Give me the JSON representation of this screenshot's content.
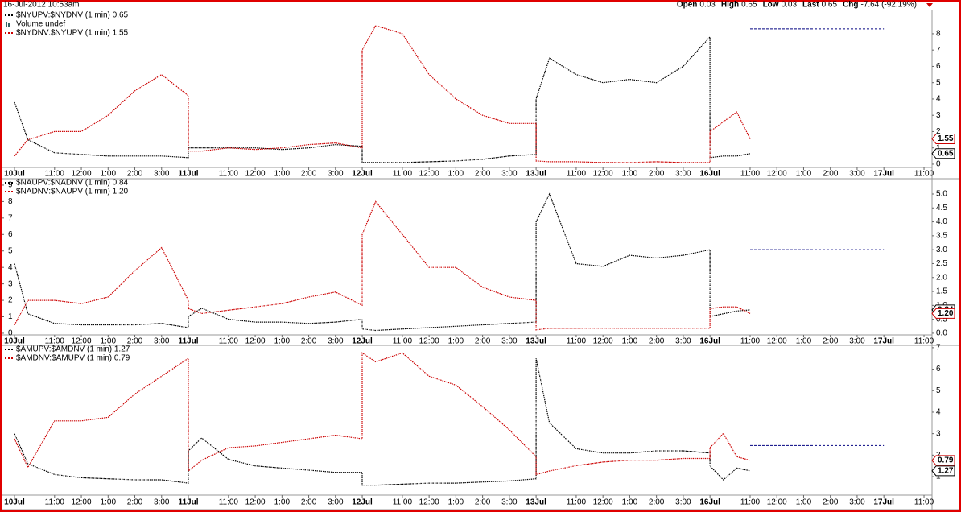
{
  "header": {
    "date": "16-Jul-2012 10:53am",
    "stats": [
      {
        "label": "Open",
        "value": "0.03"
      },
      {
        "label": "High",
        "value": "0.65"
      },
      {
        "label": "Low",
        "value": "0.03"
      },
      {
        "label": "Last",
        "value": "0.65"
      },
      {
        "label": "Chg",
        "value": "-7.64 (-92.19%)"
      }
    ]
  },
  "chart_data": [
    {
      "type": "line",
      "volume_label": "Volume undef",
      "x": [
        0,
        0.5,
        1.5,
        2.5,
        3.5,
        4.5,
        5.5,
        6.5,
        6.5,
        7,
        8,
        9,
        10,
        11,
        12,
        13,
        13,
        13.5,
        14.5,
        15.5,
        16.5,
        17.5,
        18.5,
        19.5,
        19.5,
        20,
        21,
        22,
        23,
        24,
        25,
        26,
        26,
        26.5,
        27,
        27.5
      ],
      "xlim": [
        -0.48,
        34.3
      ],
      "xticks": [
        {
          "value": 0,
          "label": "10Jul"
        },
        {
          "value": 1.5,
          "label": "11:00"
        },
        {
          "value": 2.5,
          "label": "12:00"
        },
        {
          "value": 3.5,
          "label": "1:00"
        },
        {
          "value": 4.5,
          "label": "2:00"
        },
        {
          "value": 5.5,
          "label": "3:00"
        },
        {
          "value": 6.5,
          "label": "11Jul"
        },
        {
          "value": 8,
          "label": "11:00"
        },
        {
          "value": 9,
          "label": "12:00"
        },
        {
          "value": 10,
          "label": "1:00"
        },
        {
          "value": 11,
          "label": "2:00"
        },
        {
          "value": 12,
          "label": "3:00"
        },
        {
          "value": 13,
          "label": "12Jul"
        },
        {
          "value": 14.5,
          "label": "11:00"
        },
        {
          "value": 15.5,
          "label": "12:00"
        },
        {
          "value": 16.5,
          "label": "1:00"
        },
        {
          "value": 17.5,
          "label": "2:00"
        },
        {
          "value": 18.5,
          "label": "3:00"
        },
        {
          "value": 19.5,
          "label": "13Jul"
        },
        {
          "value": 21,
          "label": "11:00"
        },
        {
          "value": 22,
          "label": "12:00"
        },
        {
          "value": 23,
          "label": "1:00"
        },
        {
          "value": 24,
          "label": "2:00"
        },
        {
          "value": 25,
          "label": "3:00"
        },
        {
          "value": 26,
          "label": "16Jul"
        },
        {
          "value": 27.5,
          "label": "11:00"
        },
        {
          "value": 28.5,
          "label": "12:00"
        },
        {
          "value": 29.5,
          "label": "1:00"
        },
        {
          "value": 30.5,
          "label": "2:00"
        },
        {
          "value": 31.5,
          "label": "3:00"
        },
        {
          "value": 32.5,
          "label": "17Jul"
        },
        {
          "value": 34,
          "label": "11:00"
        }
      ],
      "ylim": [
        -0.2,
        9.33
      ],
      "yticks": [
        0,
        1,
        2,
        3,
        4,
        5,
        6,
        7,
        8
      ],
      "ytick_side": "right",
      "reference_line": {
        "value": 8.3,
        "color": "#000080"
      },
      "series": [
        {
          "name": "$NYUPV:$NYDNV (1 min) 0.65",
          "color": "#000000",
          "last_value": 0.65,
          "values": [
            3.8,
            1.5,
            0.7,
            0.6,
            0.5,
            0.5,
            0.5,
            0.4,
            1.0,
            1.0,
            1.0,
            1.0,
            0.9,
            1.0,
            1.2,
            1.1,
            0.1,
            0.1,
            0.1,
            0.15,
            0.2,
            0.3,
            0.5,
            0.6,
            4.0,
            6.5,
            5.5,
            5.0,
            5.2,
            5.0,
            6.0,
            7.8,
            0.4,
            0.5,
            0.5,
            0.65
          ]
        },
        {
          "name": "$NYDNV:$NYUPV (1 min) 1.55",
          "color": "#cc0000",
          "last_value": 1.55,
          "values": [
            0.5,
            1.5,
            2.0,
            2.0,
            3.0,
            4.5,
            5.5,
            4.2,
            0.8,
            0.8,
            1.0,
            0.9,
            1.0,
            1.2,
            1.3,
            1.0,
            7.0,
            8.5,
            8.0,
            5.5,
            4.0,
            3.0,
            2.5,
            2.5,
            0.2,
            0.15,
            0.15,
            0.1,
            0.1,
            0.15,
            0.1,
            0.1,
            2.0,
            2.6,
            3.2,
            1.55
          ]
        }
      ]
    },
    {
      "type": "line",
      "x": [
        0,
        0.5,
        1.5,
        2.5,
        3.5,
        4.5,
        5.5,
        6.5,
        6.5,
        7,
        8,
        9,
        10,
        11,
        12,
        13,
        13,
        13.5,
        14.5,
        15.5,
        16.5,
        17.5,
        18.5,
        19.5,
        19.5,
        20,
        21,
        22,
        23,
        24,
        25,
        26,
        26,
        26.5,
        27,
        27.5
      ],
      "xlim": [
        -0.48,
        34.3
      ],
      "xticks": [
        {
          "value": 0,
          "label": "10Jul"
        },
        {
          "value": 1.5,
          "label": "11:00"
        },
        {
          "value": 2.5,
          "label": "12:00"
        },
        {
          "value": 3.5,
          "label": "1:00"
        },
        {
          "value": 4.5,
          "label": "2:00"
        },
        {
          "value": 5.5,
          "label": "3:00"
        },
        {
          "value": 6.5,
          "label": "11Jul"
        },
        {
          "value": 8,
          "label": "11:00"
        },
        {
          "value": 9,
          "label": "12:00"
        },
        {
          "value": 10,
          "label": "1:00"
        },
        {
          "value": 11,
          "label": "2:00"
        },
        {
          "value": 12,
          "label": "3:00"
        },
        {
          "value": 13,
          "label": "12Jul"
        },
        {
          "value": 14.5,
          "label": "11:00"
        },
        {
          "value": 15.5,
          "label": "12:00"
        },
        {
          "value": 16.5,
          "label": "1:00"
        },
        {
          "value": 17.5,
          "label": "2:00"
        },
        {
          "value": 18.5,
          "label": "3:00"
        },
        {
          "value": 19.5,
          "label": "13Jul"
        },
        {
          "value": 21,
          "label": "11:00"
        },
        {
          "value": 22,
          "label": "12:00"
        },
        {
          "value": 23,
          "label": "1:00"
        },
        {
          "value": 24,
          "label": "2:00"
        },
        {
          "value": 25,
          "label": "3:00"
        },
        {
          "value": 26,
          "label": "16Jul"
        },
        {
          "value": 27.5,
          "label": "11:00"
        },
        {
          "value": 28.5,
          "label": "12:00"
        },
        {
          "value": 29.5,
          "label": "1:00"
        },
        {
          "value": 30.5,
          "label": "2:00"
        },
        {
          "value": 31.5,
          "label": "3:00"
        },
        {
          "value": 32.5,
          "label": "17Jul"
        },
        {
          "value": 34,
          "label": "11:00"
        }
      ],
      "ylim": [
        -0.1,
        9.34
      ],
      "yticks": [
        0,
        1,
        2,
        3,
        4,
        5,
        6,
        7,
        8,
        9
      ],
      "ytick_side": "left",
      "y2lim": [
        -0.06,
        5.52
      ],
      "y2ticks": [
        {
          "value": 0,
          "label": "0.0"
        },
        {
          "value": 0.5,
          "label": "0.5"
        },
        {
          "value": 1,
          "label": "1.0"
        },
        {
          "value": 1.5,
          "label": "1.5"
        },
        {
          "value": 2,
          "label": "2.0"
        },
        {
          "value": 2.5,
          "label": "2.5"
        },
        {
          "value": 3,
          "label": "3.0"
        },
        {
          "value": 3.5,
          "label": "3.5"
        },
        {
          "value": 4,
          "label": "4.0"
        },
        {
          "value": 4.5,
          "label": "4.5"
        },
        {
          "value": 5,
          "label": "5.0"
        }
      ],
      "reference_line": {
        "value": 3.0,
        "color": "#000080",
        "axis": "y2"
      },
      "series": [
        {
          "name": "$NAUPV:$NADNV (1 min) 0.84",
          "color": "#000000",
          "axis": "y2",
          "last_value": 0.84,
          "values": [
            2.5,
            0.7,
            0.35,
            0.3,
            0.3,
            0.3,
            0.35,
            0.2,
            0.6,
            0.9,
            0.5,
            0.4,
            0.4,
            0.35,
            0.4,
            0.5,
            0.15,
            0.1,
            0.15,
            0.2,
            0.25,
            0.3,
            0.35,
            0.4,
            4.0,
            5.0,
            2.5,
            2.4,
            2.8,
            2.7,
            2.8,
            3.0,
            0.6,
            0.7,
            0.8,
            0.84
          ]
        },
        {
          "name": "$NADNV:$NAUPV (1 min) 1.20",
          "color": "#cc0000",
          "last_value": {
            "value": 1.2,
            "label": "1.20"
          },
          "values": [
            0.5,
            2.0,
            2.0,
            1.8,
            2.2,
            3.8,
            5.2,
            2.0,
            1.5,
            1.2,
            1.4,
            1.6,
            1.8,
            2.2,
            2.5,
            1.7,
            6.0,
            8.0,
            6.0,
            4.0,
            4.0,
            2.8,
            2.2,
            2.0,
            0.2,
            0.3,
            0.3,
            0.3,
            0.3,
            0.3,
            0.3,
            0.3,
            1.5,
            1.6,
            1.6,
            1.2
          ]
        }
      ]
    },
    {
      "type": "line",
      "x": [
        0,
        0.5,
        1.5,
        2.5,
        3.5,
        4.5,
        5.5,
        6.5,
        6.5,
        7,
        8,
        9,
        10,
        11,
        12,
        13,
        13,
        13.5,
        14.5,
        15.5,
        16.5,
        17.5,
        18.5,
        19.5,
        19.5,
        20,
        21,
        22,
        23,
        24,
        25,
        26,
        26,
        26.5,
        27,
        27.5
      ],
      "xlim": [
        -0.48,
        34.3
      ],
      "xticks": [
        {
          "value": 0,
          "label": "10Jul"
        },
        {
          "value": 1.5,
          "label": "11:00"
        },
        {
          "value": 2.5,
          "label": "12:00"
        },
        {
          "value": 3.5,
          "label": "1:00"
        },
        {
          "value": 4.5,
          "label": "2:00"
        },
        {
          "value": 5.5,
          "label": "3:00"
        },
        {
          "value": 6.5,
          "label": "11Jul"
        },
        {
          "value": 8,
          "label": "11:00"
        },
        {
          "value": 9,
          "label": "12:00"
        },
        {
          "value": 10,
          "label": "1:00"
        },
        {
          "value": 11,
          "label": "2:00"
        },
        {
          "value": 12,
          "label": "3:00"
        },
        {
          "value": 13,
          "label": "12Jul"
        },
        {
          "value": 14.5,
          "label": "11:00"
        },
        {
          "value": 15.5,
          "label": "12:00"
        },
        {
          "value": 16.5,
          "label": "1:00"
        },
        {
          "value": 17.5,
          "label": "2:00"
        },
        {
          "value": 18.5,
          "label": "3:00"
        },
        {
          "value": 19.5,
          "label": "13Jul"
        },
        {
          "value": 21,
          "label": "11:00"
        },
        {
          "value": 22,
          "label": "12:00"
        },
        {
          "value": 23,
          "label": "1:00"
        },
        {
          "value": 24,
          "label": "2:00"
        },
        {
          "value": 25,
          "label": "3:00"
        },
        {
          "value": 26,
          "label": "16Jul"
        },
        {
          "value": 27.5,
          "label": "11:00"
        },
        {
          "value": 28.5,
          "label": "12:00"
        },
        {
          "value": 29.5,
          "label": "1:00"
        },
        {
          "value": 30.5,
          "label": "2:00"
        },
        {
          "value": 31.5,
          "label": "3:00"
        },
        {
          "value": 32.5,
          "label": "17Jul"
        },
        {
          "value": 34,
          "label": "11:00"
        }
      ],
      "ylim": [
        0.14,
        7.07
      ],
      "yticks": [
        1,
        2,
        3,
        4,
        5,
        6,
        7
      ],
      "ytick_side": "right",
      "y2lim": [
        -1.15,
        7.18
      ],
      "reference_line": {
        "value": 2.45,
        "color": "#000080"
      },
      "series": [
        {
          "name": "$AMUPV:$AMDNV (1 min) 1.27",
          "color": "#000000",
          "last_value": 1.27,
          "values": [
            3.0,
            1.6,
            1.1,
            0.95,
            0.9,
            0.85,
            0.85,
            0.7,
            2.2,
            2.8,
            1.8,
            1.5,
            1.4,
            1.3,
            1.2,
            1.2,
            0.6,
            0.6,
            0.65,
            0.7,
            0.7,
            0.75,
            0.8,
            0.9,
            6.5,
            3.5,
            2.3,
            2.1,
            2.1,
            2.2,
            2.2,
            2.1,
            1.5,
            0.85,
            1.4,
            1.27
          ]
        },
        {
          "name": "$AMDNV:$AMUPV (1 min) 0.79",
          "color": "#cc0000",
          "axis": "y2",
          "last_value": 0.79,
          "values": [
            2.0,
            0.4,
            3.0,
            3.0,
            3.2,
            4.5,
            5.5,
            6.5,
            0.2,
            0.8,
            1.5,
            1.6,
            1.8,
            2.0,
            2.2,
            2.0,
            6.8,
            6.3,
            6.8,
            5.5,
            5.0,
            3.8,
            2.5,
            1.0,
            0.0,
            0.2,
            0.5,
            0.7,
            0.8,
            0.8,
            0.9,
            0.9,
            1.5,
            2.3,
            1.0,
            0.79
          ]
        }
      ]
    }
  ]
}
